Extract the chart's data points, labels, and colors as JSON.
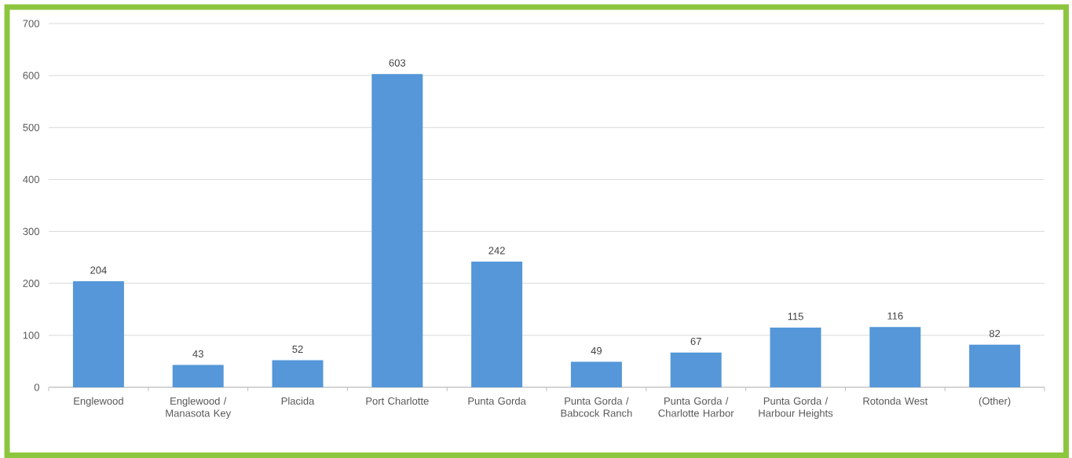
{
  "chart_data": {
    "type": "bar",
    "categories": [
      "Englewood",
      "Englewood / Manasota Key",
      "Placida",
      "Port Charlotte",
      "Punta Gorda",
      "Punta Gorda / Babcock Ranch",
      "Punta Gorda / Charlotte Harbor",
      "Punta Gorda / Harbour Heights",
      "Rotonda West",
      "(Other)"
    ],
    "values": [
      204,
      43,
      52,
      603,
      242,
      49,
      67,
      115,
      116,
      82
    ],
    "color": "#5597d8",
    "ylim": [
      0,
      700
    ],
    "yticks": [
      0,
      100,
      200,
      300,
      400,
      500,
      600,
      700
    ],
    "grid": "y",
    "data_labels": true
  }
}
